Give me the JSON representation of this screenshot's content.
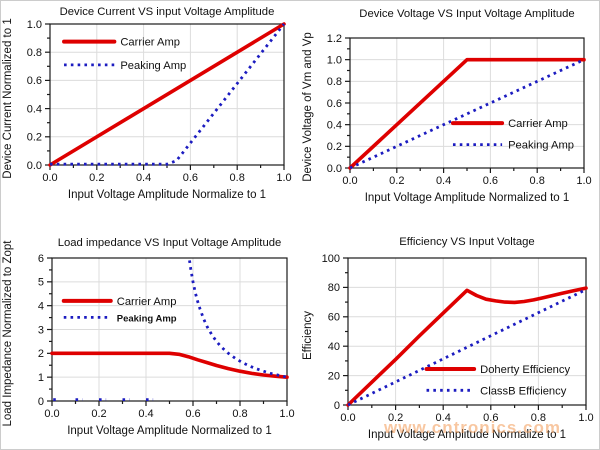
{
  "page": {
    "background": "#FFFFFF",
    "border_color": "#CCCCCC"
  },
  "watermark": {
    "text": "www.cntronics.com",
    "color": "rgba(242,153,84,0.55)"
  },
  "colors": {
    "carrier_red": "#DE0000",
    "peaking_blue": "#1C1CC0",
    "grid": "#DCDCDC",
    "axis": "#1A1A1A"
  },
  "chart_data": [
    {
      "type": "line",
      "id": "device-current",
      "title": "Device Current VS input Voltage Amplitude",
      "xlabel": "Input Voltage Amplitude Normalize to 1",
      "ylabel": "Device Current Normalized to 1",
      "xlim": [
        0,
        1
      ],
      "ylim": [
        0,
        1
      ],
      "xticks": [
        0,
        0.2,
        0.4,
        0.6,
        0.8,
        1
      ],
      "xtick_labels": [
        "0.0",
        "0.2",
        "0.4",
        "0.6",
        "0.8",
        "1.0"
      ],
      "yticks": [
        0,
        0.2,
        0.4,
        0.6,
        0.8,
        1
      ],
      "ytick_labels": [
        "0.0",
        "0.2",
        "0.4",
        "0.6",
        "0.8",
        "1.0"
      ],
      "minor_x": 0.1,
      "minor_y": 0.1,
      "grid": true,
      "legend": {
        "fx": 0.06,
        "fy": 0.125,
        "dy": 0.165,
        "line_len": 0.215
      },
      "series": [
        {
          "name": "Carrier Amp",
          "color": "#DE0000",
          "style": "solid",
          "segments": [
            [
              [
                0,
                0
              ],
              [
                1,
                1
              ]
            ]
          ]
        },
        {
          "name": "Peaking Amp",
          "color": "#1C1CC0",
          "style": "dotted",
          "segments": [
            [
              [
                0,
                0.006
              ],
              [
                0.5,
                0.006
              ],
              [
                0.54,
                0.03
              ],
              [
                1,
                1
              ]
            ]
          ]
        }
      ]
    },
    {
      "type": "line",
      "id": "device-voltage",
      "title": "Device Voltage VS Input Voltage Amplitude",
      "xlabel": "Input Voltage Amplitude Normalized to 1",
      "ylabel": "Device Voltage of Vm and Vp",
      "xlim": [
        0,
        1
      ],
      "ylim": [
        0,
        1.2
      ],
      "xticks": [
        0,
        0.2,
        0.4,
        0.6,
        0.8,
        1
      ],
      "xtick_labels": [
        "0.0",
        "0.2",
        "0.4",
        "0.6",
        "0.8",
        "1.0"
      ],
      "yticks": [
        0,
        0.2,
        0.4,
        0.6,
        0.8,
        1,
        1.2
      ],
      "ytick_labels": [
        "0.0",
        "0.2",
        "0.4",
        "0.6",
        "0.8",
        "1.0",
        "1.2"
      ],
      "minor_x": 0.1,
      "minor_y": 0.1,
      "grid": true,
      "legend": {
        "fx": 0.44,
        "fy": 0.655,
        "dy": 0.165,
        "line_len": 0.21
      },
      "series": [
        {
          "name": "Carrier Amp",
          "color": "#DE0000",
          "style": "solid",
          "segments": [
            [
              [
                0,
                0
              ],
              [
                0.5,
                1
              ],
              [
                1,
                1
              ]
            ]
          ]
        },
        {
          "name": "Peaking Amp",
          "color": "#1C1CC0",
          "style": "dotted",
          "segments": [
            [
              [
                0,
                0
              ],
              [
                1,
                1
              ]
            ]
          ]
        }
      ]
    },
    {
      "type": "line",
      "id": "load-impedance",
      "title": "Load impedance VS Input Voltage Amplitude",
      "xlabel": "Input Voltage Amplitude Normalized to 1",
      "ylabel": "Load Impedance Normalized to Zopt",
      "xlim": [
        0,
        1
      ],
      "ylim": [
        0,
        6
      ],
      "xticks": [
        0,
        0.2,
        0.4,
        0.6,
        0.8,
        1
      ],
      "xtick_labels": [
        "0.0",
        "0.2",
        "0.4",
        "0.6",
        "0.8",
        "1.0"
      ],
      "yticks": [
        0,
        1,
        2,
        3,
        4,
        5,
        6
      ],
      "ytick_labels": [
        "0",
        "1",
        "2",
        "3",
        "4",
        "5",
        "6"
      ],
      "minor_x": 0.1,
      "minor_y": 0.5,
      "grid": true,
      "legend": {
        "fx": 0.05,
        "fy": 0.3,
        "dy": 0.115,
        "line_len": 0.2
      },
      "series": [
        {
          "name": "Carrier Amp",
          "color": "#DE0000",
          "style": "solid",
          "segments": [
            [
              [
                0,
                2
              ],
              [
                0.5,
                2
              ],
              [
                0.54,
                1.96
              ],
              [
                0.58,
                1.86
              ],
              [
                0.62,
                1.73
              ],
              [
                0.66,
                1.61
              ],
              [
                0.7,
                1.49
              ],
              [
                0.75,
                1.36
              ],
              [
                0.8,
                1.25
              ],
              [
                0.85,
                1.16
              ],
              [
                0.9,
                1.09
              ],
              [
                0.95,
                1.04
              ],
              [
                1,
                1
              ]
            ]
          ]
        },
        {
          "name": "Peaking Amp",
          "color": "#1C1CC0",
          "style": "dotted",
          "legend_small": true,
          "segments": [
            [
              [
                0.005,
                0.06
              ],
              [
                0.03,
                0.06
              ]
            ],
            [
              [
                0.1,
                0.06
              ],
              [
                0.13,
                0.06
              ]
            ],
            [
              [
                0.2,
                0.06
              ],
              [
                0.23,
                0.06
              ]
            ],
            [
              [
                0.3,
                0.06
              ],
              [
                0.33,
                0.06
              ]
            ],
            [
              [
                0.4,
                0.06
              ],
              [
                0.43,
                0.06
              ]
            ],
            [
              [
                0.585,
                5.9
              ],
              [
                0.59,
                5.55
              ],
              [
                0.6,
                5.0
              ],
              [
                0.61,
                4.55
              ],
              [
                0.62,
                4.17
              ],
              [
                0.63,
                3.85
              ],
              [
                0.645,
                3.45
              ],
              [
                0.66,
                3.12
              ],
              [
                0.68,
                2.78
              ],
              [
                0.7,
                2.5
              ],
              [
                0.72,
                2.27
              ],
              [
                0.75,
                2.0
              ],
              [
                0.78,
                1.79
              ],
              [
                0.81,
                1.61
              ],
              [
                0.84,
                1.47
              ],
              [
                0.87,
                1.35
              ],
              [
                0.9,
                1.25
              ],
              [
                0.93,
                1.16
              ],
              [
                0.96,
                1.09
              ],
              [
                1.0,
                1.0
              ]
            ]
          ]
        }
      ]
    },
    {
      "type": "line",
      "id": "efficiency",
      "title": "Efficiency VS Input Voltage",
      "xlabel": "Input Voltage Amplitude Normalize to 1",
      "ylabel": "Efficiency",
      "xlim": [
        0,
        1
      ],
      "ylim": [
        0,
        100
      ],
      "xticks": [
        0,
        0.2,
        0.4,
        0.6,
        0.8,
        1
      ],
      "xtick_labels": [
        "0.0",
        "0.2",
        "0.4",
        "0.6",
        "0.8",
        "1.0"
      ],
      "yticks": [
        0,
        20,
        40,
        60,
        80,
        100
      ],
      "ytick_labels": [
        "0",
        "20",
        "40",
        "60",
        "80",
        "100"
      ],
      "minor_x": 0.1,
      "minor_y": 10,
      "grid": true,
      "legend": {
        "fx": 0.33,
        "fy": 0.755,
        "dy": 0.145,
        "line_len": 0.2
      },
      "series": [
        {
          "name": "Doherty Efficiency",
          "color": "#DE0000",
          "style": "solid",
          "segments": [
            [
              [
                0,
                0
              ],
              [
                0.1,
                15.5
              ],
              [
                0.2,
                31
              ],
              [
                0.3,
                47
              ],
              [
                0.4,
                62.5
              ],
              [
                0.5,
                78
              ],
              [
                0.54,
                74.5
              ],
              [
                0.58,
                72
              ],
              [
                0.62,
                70.8
              ],
              [
                0.66,
                70
              ],
              [
                0.7,
                69.8
              ],
              [
                0.74,
                70.4
              ],
              [
                0.78,
                71.5
              ],
              [
                0.82,
                73
              ],
              [
                0.86,
                74.5
              ],
              [
                0.9,
                76
              ],
              [
                0.95,
                77.8
              ],
              [
                1,
                79.5
              ]
            ]
          ]
        },
        {
          "name": "ClassB Efficiency",
          "color": "#1C1CC0",
          "style": "dotted",
          "segments": [
            [
              [
                0,
                0
              ],
              [
                1,
                78.5
              ]
            ]
          ]
        }
      ]
    }
  ]
}
